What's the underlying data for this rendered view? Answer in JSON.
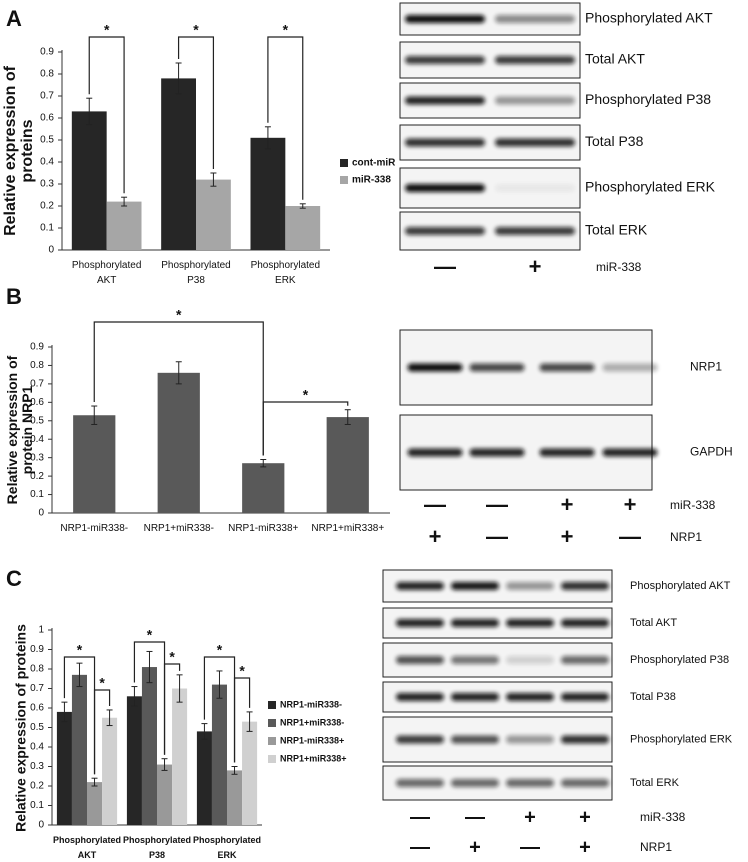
{
  "panel_labels": [
    "A",
    "B",
    "C"
  ],
  "chart_data": [
    {
      "type": "bar",
      "y_label": "Relative expression of proteins",
      "categories": [
        "Phosphorylated AKT",
        "Phosphorylated P38",
        "Phosphorylated ERK"
      ],
      "series": [
        {
          "name": "cont-miR",
          "color": "#262626",
          "values": [
            0.63,
            0.78,
            0.51
          ],
          "errors": [
            0.06,
            0.07,
            0.05
          ]
        },
        {
          "name": "miR-338",
          "color": "#a6a6a6",
          "values": [
            0.22,
            0.32,
            0.2
          ],
          "errors": [
            0.02,
            0.03,
            0.01
          ]
        }
      ],
      "ylim": [
        0,
        0.9
      ],
      "yticks": [
        0,
        0.1,
        0.2,
        0.3,
        0.4,
        0.5,
        0.6,
        0.7,
        0.8,
        0.9
      ],
      "annotations": [
        "*",
        "*",
        "*"
      ]
    },
    {
      "type": "bar",
      "y_label": "Relative expression of protein NRP1",
      "categories": [
        "NRP1-miR338-",
        "NRP1+miR338-",
        "NRP1-miR338+",
        "NRP1+miR338+"
      ],
      "color": "#595959",
      "values": [
        0.53,
        0.76,
        0.27,
        0.52
      ],
      "errors": [
        0.05,
        0.06,
        0.02,
        0.04
      ],
      "ylim": [
        0,
        0.9
      ],
      "yticks": [
        0,
        0.1,
        0.2,
        0.3,
        0.4,
        0.5,
        0.6,
        0.7,
        0.8,
        0.9
      ],
      "annotations": [
        "*",
        "*"
      ]
    },
    {
      "type": "bar",
      "y_label": "Relative expression of proteins",
      "categories": [
        "Phosphorylated AKT",
        "Phosphorylated P38",
        "Phosphorylated ERK"
      ],
      "series": [
        {
          "name": "NRP1-miR338-",
          "color": "#262626",
          "values": [
            0.58,
            0.66,
            0.48
          ],
          "errors": [
            0.05,
            0.05,
            0.04
          ]
        },
        {
          "name": "NRP1+miR338-",
          "color": "#595959",
          "values": [
            0.77,
            0.81,
            0.72
          ],
          "errors": [
            0.06,
            0.08,
            0.07
          ]
        },
        {
          "name": "NRP1-miR338+",
          "color": "#999999",
          "values": [
            0.22,
            0.31,
            0.28
          ],
          "errors": [
            0.02,
            0.03,
            0.02
          ]
        },
        {
          "name": "NRP1+miR338+",
          "color": "#d0d0d0",
          "values": [
            0.55,
            0.7,
            0.53
          ],
          "errors": [
            0.04,
            0.07,
            0.05
          ]
        }
      ],
      "ylim": [
        0,
        1
      ],
      "yticks": [
        0,
        0.1,
        0.2,
        0.3,
        0.4,
        0.5,
        0.6,
        0.7,
        0.8,
        0.9,
        1
      ],
      "annotations": [
        "*",
        "*",
        "*",
        "*",
        "*",
        "*"
      ]
    }
  ],
  "blots": [
    {
      "labels": [
        "Phosphorylated AKT",
        "Total AKT",
        "Phosphorylated  P38",
        "Total  P38",
        "Phosphorylated ERK",
        "Total ERK"
      ],
      "conditions": [
        {
          "label": "miR-338",
          "signs": [
            "—",
            "+"
          ]
        }
      ]
    },
    {
      "labels": [
        "NRP1",
        "GAPDH"
      ],
      "conditions": [
        {
          "label": "miR-338",
          "signs": [
            "—",
            "—",
            "+",
            "+"
          ]
        },
        {
          "label": "NRP1",
          "signs": [
            "+",
            "—",
            "+",
            "—"
          ]
        }
      ]
    },
    {
      "labels": [
        "Phosphorylated AKT",
        "Total AKT",
        "Phosphorylated  P38",
        "Total  P38",
        "Phosphorylated ERK",
        "Total ERK"
      ],
      "conditions": [
        {
          "label": "miR-338",
          "signs": [
            "—",
            "—",
            "+",
            "+"
          ]
        },
        {
          "label": "NRP1",
          "signs": [
            "—",
            "+",
            "—",
            "+"
          ]
        }
      ]
    }
  ]
}
